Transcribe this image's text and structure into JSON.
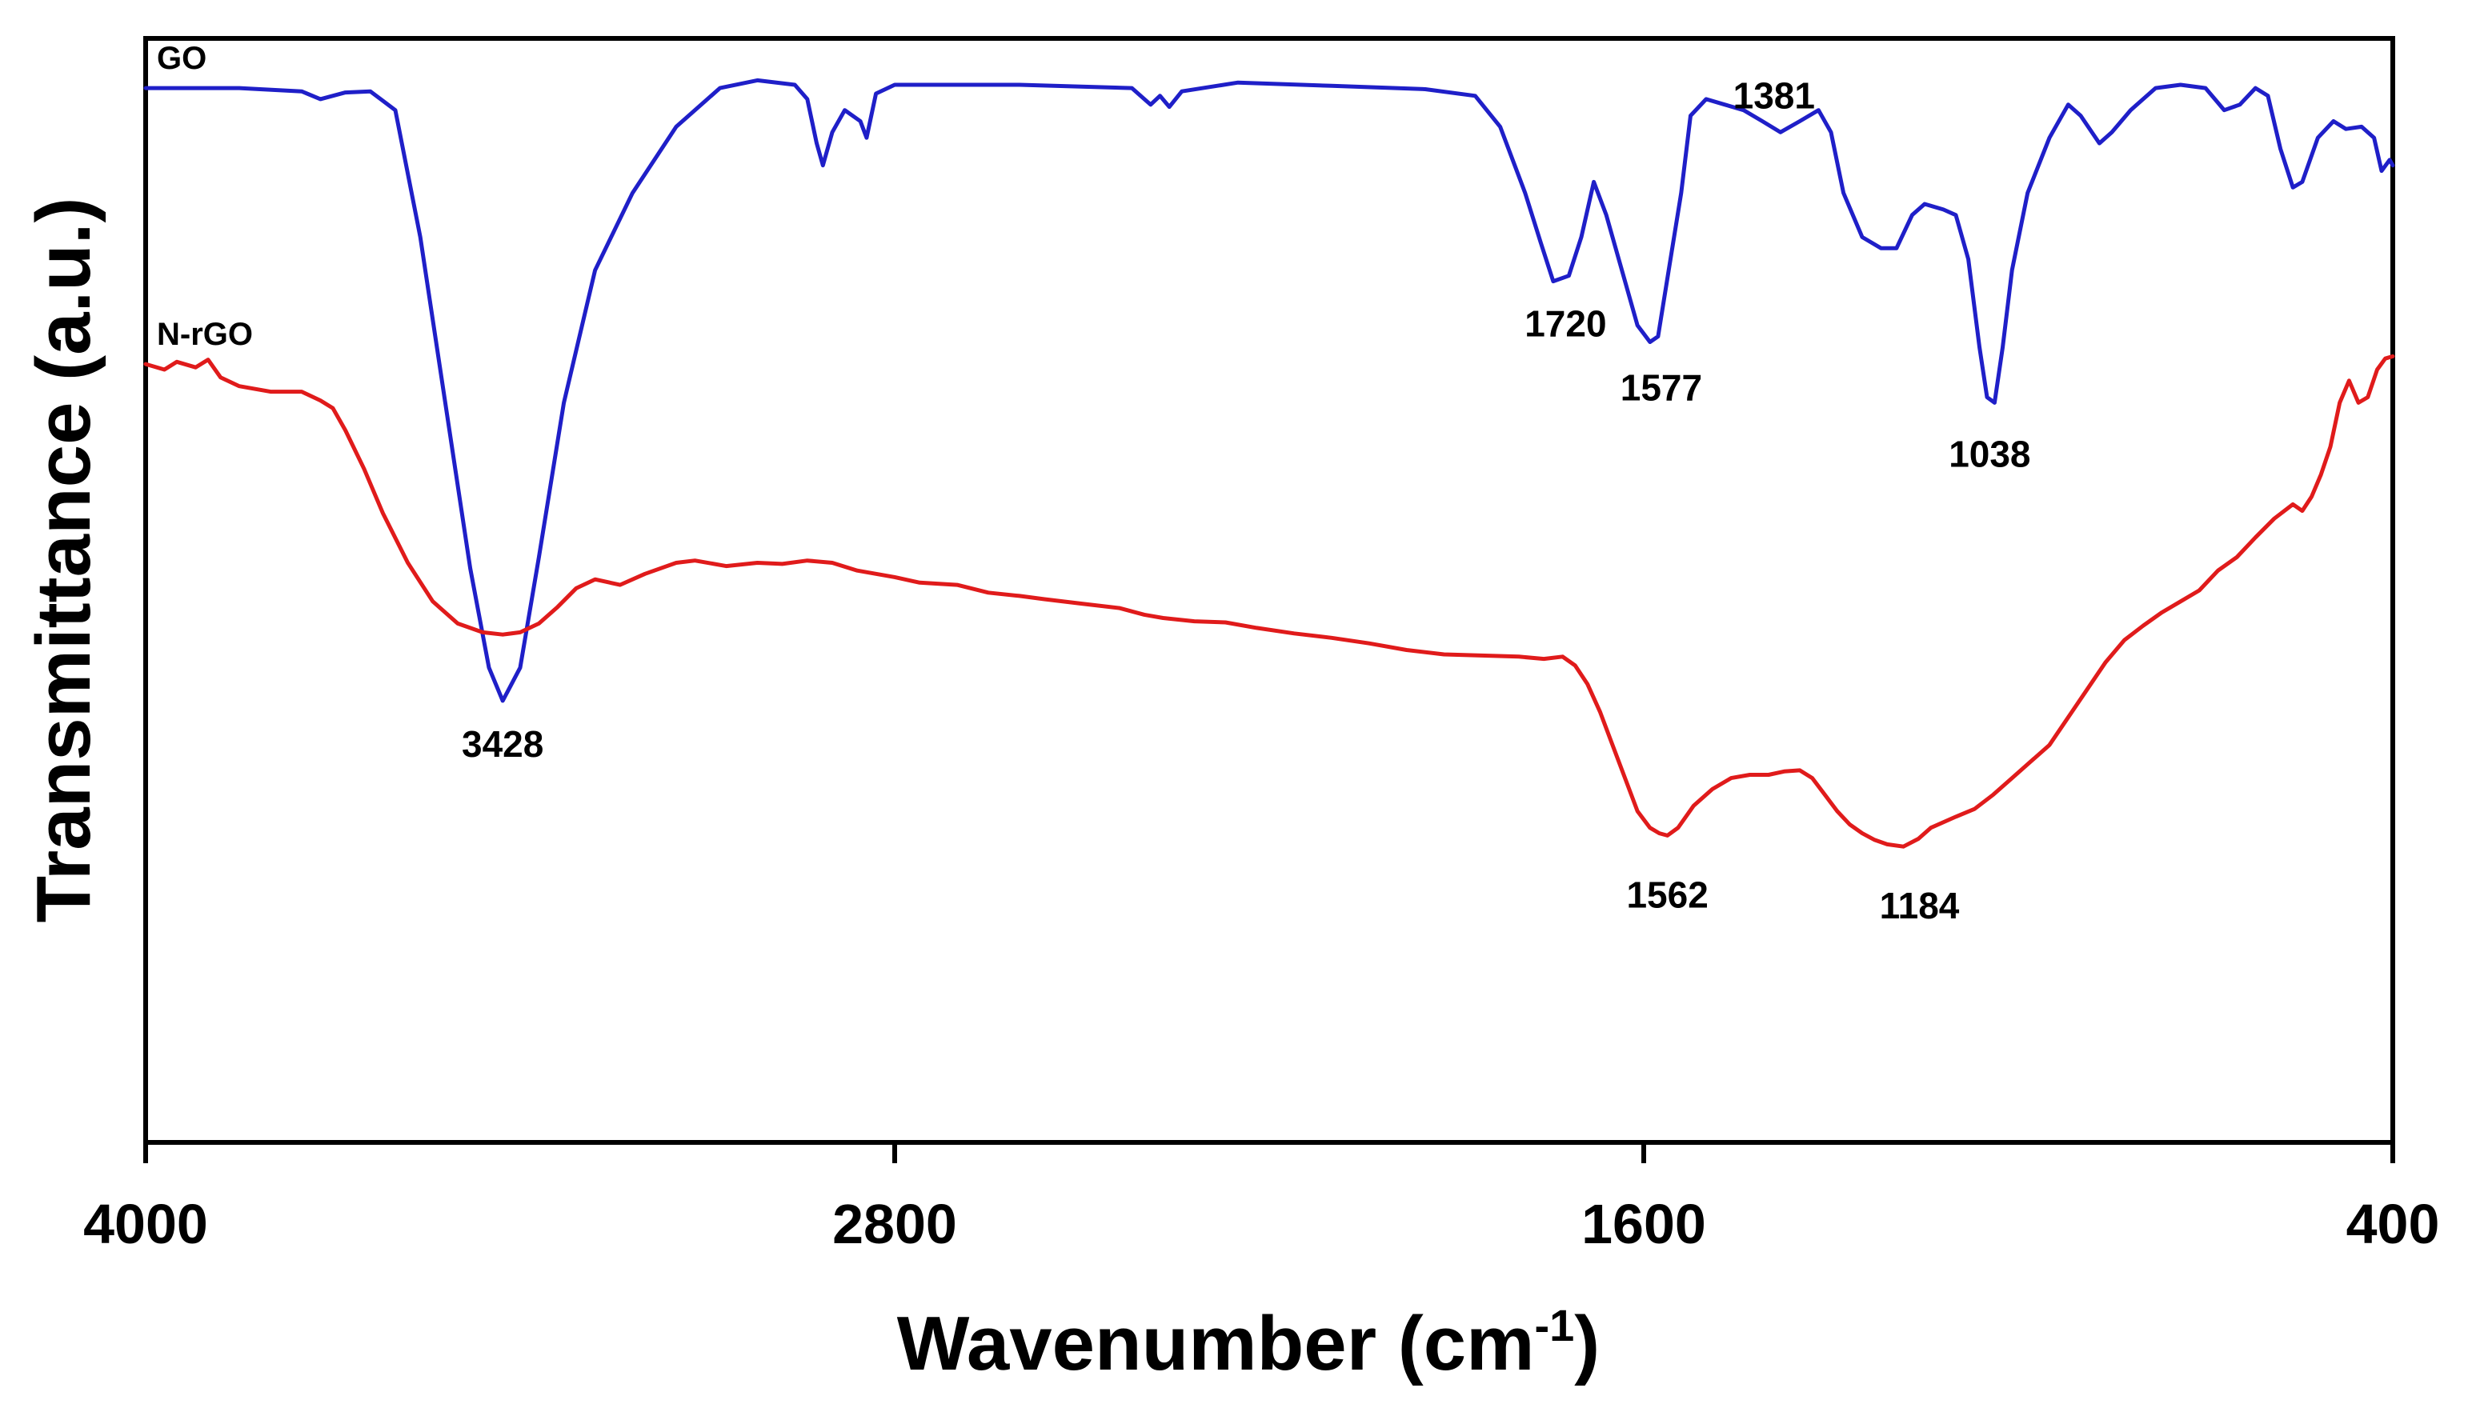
{
  "chart_data": {
    "type": "line",
    "title": "",
    "xlabel": "Wavenumber (cm",
    "xlabel_superscript": "-1",
    "xlabel_close": ")",
    "ylabel": "Transmittance (a.u.)",
    "xlim": [
      4000,
      400
    ],
    "x_reversed": true,
    "ylim": [
      0,
      1
    ],
    "grid": false,
    "xticks": [
      {
        "value": 4000,
        "label": "4000"
      },
      {
        "value": 2800,
        "label": "2800"
      },
      {
        "value": 1600,
        "label": "1600"
      },
      {
        "value": 400,
        "label": "400"
      }
    ],
    "series": [
      {
        "name": "GO",
        "color": "#1f1fc8",
        "points": [
          [
            4000,
            0.955
          ],
          [
            3850,
            0.955
          ],
          [
            3750,
            0.952
          ],
          [
            3720,
            0.945
          ],
          [
            3680,
            0.951
          ],
          [
            3640,
            0.952
          ],
          [
            3600,
            0.935
          ],
          [
            3560,
            0.82
          ],
          [
            3520,
            0.67
          ],
          [
            3480,
            0.52
          ],
          [
            3450,
            0.43
          ],
          [
            3428,
            0.4
          ],
          [
            3400,
            0.43
          ],
          [
            3370,
            0.53
          ],
          [
            3330,
            0.67
          ],
          [
            3280,
            0.79
          ],
          [
            3220,
            0.86
          ],
          [
            3150,
            0.92
          ],
          [
            3080,
            0.955
          ],
          [
            3020,
            0.962
          ],
          [
            2960,
            0.958
          ],
          [
            2940,
            0.945
          ],
          [
            2925,
            0.905
          ],
          [
            2915,
            0.885
          ],
          [
            2900,
            0.915
          ],
          [
            2880,
            0.935
          ],
          [
            2855,
            0.925
          ],
          [
            2845,
            0.91
          ],
          [
            2830,
            0.95
          ],
          [
            2800,
            0.958
          ],
          [
            2600,
            0.958
          ],
          [
            2420,
            0.955
          ],
          [
            2390,
            0.94
          ],
          [
            2375,
            0.948
          ],
          [
            2360,
            0.938
          ],
          [
            2340,
            0.952
          ],
          [
            2250,
            0.96
          ],
          [
            2100,
            0.957
          ],
          [
            1950,
            0.954
          ],
          [
            1870,
            0.948
          ],
          [
            1830,
            0.92
          ],
          [
            1790,
            0.86
          ],
          [
            1765,
            0.815
          ],
          [
            1745,
            0.78
          ],
          [
            1720,
            0.785
          ],
          [
            1700,
            0.82
          ],
          [
            1680,
            0.87
          ],
          [
            1660,
            0.84
          ],
          [
            1635,
            0.79
          ],
          [
            1610,
            0.74
          ],
          [
            1590,
            0.725
          ],
          [
            1577,
            0.73
          ],
          [
            1560,
            0.79
          ],
          [
            1540,
            0.86
          ],
          [
            1525,
            0.93
          ],
          [
            1500,
            0.945
          ],
          [
            1470,
            0.94
          ],
          [
            1440,
            0.935
          ],
          [
            1410,
            0.925
          ],
          [
            1381,
            0.915
          ],
          [
            1350,
            0.925
          ],
          [
            1320,
            0.935
          ],
          [
            1300,
            0.915
          ],
          [
            1280,
            0.86
          ],
          [
            1250,
            0.82
          ],
          [
            1220,
            0.81
          ],
          [
            1195,
            0.81
          ],
          [
            1170,
            0.84
          ],
          [
            1150,
            0.85
          ],
          [
            1120,
            0.845
          ],
          [
            1100,
            0.84
          ],
          [
            1080,
            0.8
          ],
          [
            1062,
            0.72
          ],
          [
            1050,
            0.675
          ],
          [
            1038,
            0.67
          ],
          [
            1025,
            0.72
          ],
          [
            1010,
            0.79
          ],
          [
            985,
            0.86
          ],
          [
            950,
            0.91
          ],
          [
            920,
            0.94
          ],
          [
            900,
            0.93
          ],
          [
            870,
            0.905
          ],
          [
            850,
            0.915
          ],
          [
            820,
            0.935
          ],
          [
            780,
            0.955
          ],
          [
            740,
            0.958
          ],
          [
            700,
            0.955
          ],
          [
            670,
            0.935
          ],
          [
            645,
            0.94
          ],
          [
            620,
            0.955
          ],
          [
            600,
            0.948
          ],
          [
            580,
            0.9
          ],
          [
            560,
            0.865
          ],
          [
            545,
            0.87
          ],
          [
            520,
            0.91
          ],
          [
            495,
            0.925
          ],
          [
            475,
            0.918
          ],
          [
            450,
            0.92
          ],
          [
            430,
            0.91
          ],
          [
            418,
            0.88
          ],
          [
            405,
            0.89
          ],
          [
            400,
            0.885
          ]
        ]
      },
      {
        "name": "N-rGO",
        "color": "#e01b1b",
        "points": [
          [
            4000,
            0.705
          ],
          [
            3970,
            0.7
          ],
          [
            3950,
            0.707
          ],
          [
            3920,
            0.702
          ],
          [
            3900,
            0.709
          ],
          [
            3880,
            0.693
          ],
          [
            3850,
            0.685
          ],
          [
            3800,
            0.68
          ],
          [
            3750,
            0.68
          ],
          [
            3720,
            0.672
          ],
          [
            3700,
            0.665
          ],
          [
            3680,
            0.645
          ],
          [
            3650,
            0.61
          ],
          [
            3620,
            0.57
          ],
          [
            3580,
            0.525
          ],
          [
            3540,
            0.49
          ],
          [
            3500,
            0.47
          ],
          [
            3460,
            0.462
          ],
          [
            3428,
            0.46
          ],
          [
            3400,
            0.462
          ],
          [
            3370,
            0.47
          ],
          [
            3340,
            0.485
          ],
          [
            3310,
            0.502
          ],
          [
            3280,
            0.51
          ],
          [
            3240,
            0.505
          ],
          [
            3200,
            0.515
          ],
          [
            3150,
            0.525
          ],
          [
            3120,
            0.527
          ],
          [
            3070,
            0.522
          ],
          [
            3020,
            0.525
          ],
          [
            2980,
            0.524
          ],
          [
            2940,
            0.527
          ],
          [
            2900,
            0.525
          ],
          [
            2860,
            0.518
          ],
          [
            2800,
            0.512
          ],
          [
            2760,
            0.507
          ],
          [
            2700,
            0.505
          ],
          [
            2650,
            0.498
          ],
          [
            2600,
            0.495
          ],
          [
            2560,
            0.492
          ],
          [
            2500,
            0.488
          ],
          [
            2440,
            0.484
          ],
          [
            2400,
            0.478
          ],
          [
            2370,
            0.475
          ],
          [
            2320,
            0.472
          ],
          [
            2270,
            0.471
          ],
          [
            2220,
            0.466
          ],
          [
            2160,
            0.461
          ],
          [
            2100,
            0.457
          ],
          [
            2040,
            0.452
          ],
          [
            1980,
            0.446
          ],
          [
            1920,
            0.442
          ],
          [
            1860,
            0.441
          ],
          [
            1800,
            0.44
          ],
          [
            1760,
            0.438
          ],
          [
            1730,
            0.44
          ],
          [
            1710,
            0.432
          ],
          [
            1690,
            0.415
          ],
          [
            1670,
            0.39
          ],
          [
            1650,
            0.36
          ],
          [
            1630,
            0.33
          ],
          [
            1610,
            0.3
          ],
          [
            1590,
            0.285
          ],
          [
            1575,
            0.28
          ],
          [
            1562,
            0.278
          ],
          [
            1545,
            0.285
          ],
          [
            1520,
            0.305
          ],
          [
            1490,
            0.32
          ],
          [
            1460,
            0.33
          ],
          [
            1430,
            0.333
          ],
          [
            1400,
            0.333
          ],
          [
            1375,
            0.336
          ],
          [
            1350,
            0.337
          ],
          [
            1330,
            0.33
          ],
          [
            1310,
            0.315
          ],
          [
            1290,
            0.3
          ],
          [
            1270,
            0.288
          ],
          [
            1250,
            0.28
          ],
          [
            1230,
            0.274
          ],
          [
            1210,
            0.27
          ],
          [
            1184,
            0.268
          ],
          [
            1160,
            0.275
          ],
          [
            1140,
            0.285
          ],
          [
            1100,
            0.295
          ],
          [
            1070,
            0.302
          ],
          [
            1040,
            0.315
          ],
          [
            1010,
            0.33
          ],
          [
            980,
            0.345
          ],
          [
            950,
            0.36
          ],
          [
            920,
            0.385
          ],
          [
            890,
            0.41
          ],
          [
            860,
            0.435
          ],
          [
            830,
            0.455
          ],
          [
            800,
            0.468
          ],
          [
            770,
            0.48
          ],
          [
            740,
            0.49
          ],
          [
            710,
            0.5
          ],
          [
            680,
            0.518
          ],
          [
            650,
            0.53
          ],
          [
            620,
            0.548
          ],
          [
            590,
            0.565
          ],
          [
            560,
            0.578
          ],
          [
            545,
            0.572
          ],
          [
            530,
            0.585
          ],
          [
            515,
            0.605
          ],
          [
            500,
            0.63
          ],
          [
            485,
            0.67
          ],
          [
            470,
            0.69
          ],
          [
            455,
            0.67
          ],
          [
            440,
            0.675
          ],
          [
            425,
            0.7
          ],
          [
            412,
            0.71
          ],
          [
            400,
            0.712
          ]
        ]
      }
    ],
    "annotations": [
      {
        "text": "GO",
        "series": "GO",
        "type": "series-label"
      },
      {
        "text": "N-rGO",
        "series": "N-rGO",
        "type": "series-label"
      },
      {
        "text": "3428",
        "x": 3428,
        "series": "GO",
        "type": "peak"
      },
      {
        "text": "1720",
        "x": 1720,
        "series": "GO",
        "type": "peak"
      },
      {
        "text": "1577",
        "x": 1577,
        "series": "GO",
        "type": "peak"
      },
      {
        "text": "1381",
        "x": 1381,
        "series": "GO",
        "type": "peak"
      },
      {
        "text": "1038",
        "x": 1038,
        "series": "GO",
        "type": "peak"
      },
      {
        "text": "1562",
        "x": 1562,
        "series": "N-rGO",
        "type": "peak"
      },
      {
        "text": "1184",
        "x": 1184,
        "series": "N-rGO",
        "type": "peak"
      }
    ]
  }
}
